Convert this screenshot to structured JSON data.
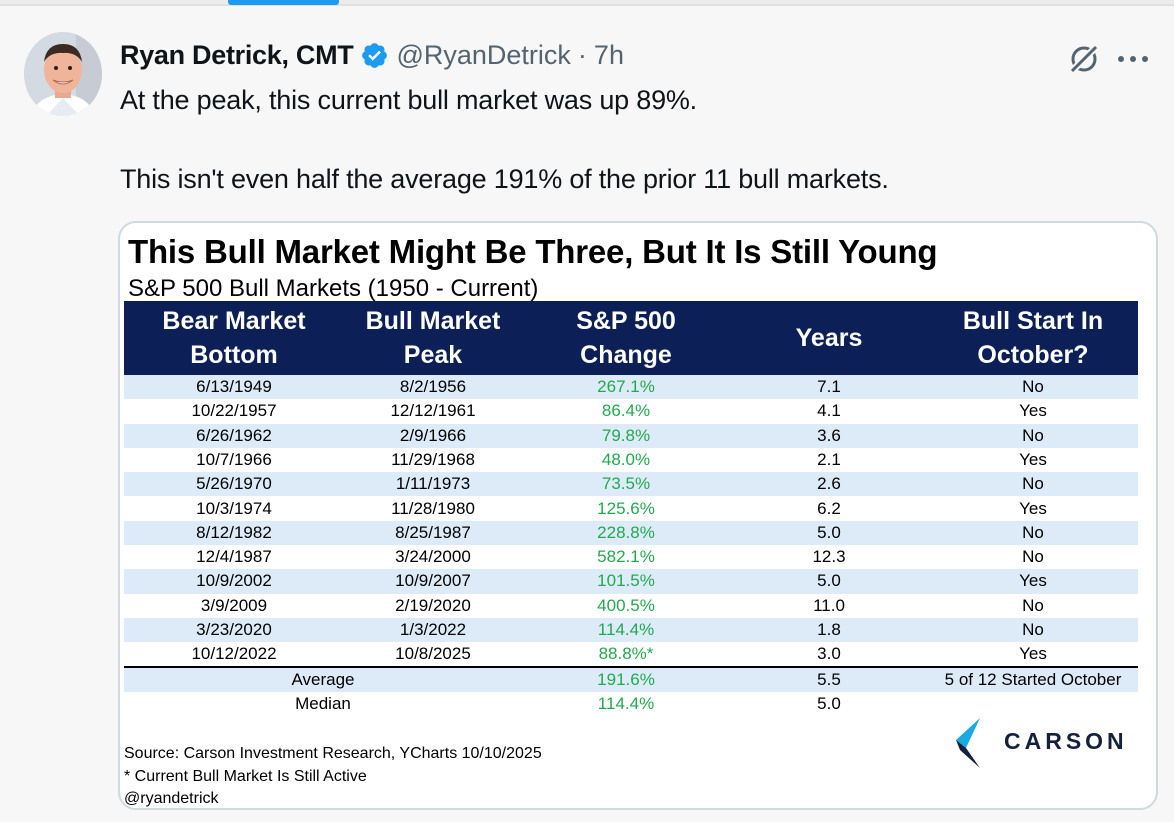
{
  "tweet": {
    "author_name": "Ryan Detrick, CMT",
    "handle": "@RyanDetrick",
    "separator": "·",
    "time": "7h",
    "text_line1": "At the peak, this current bull market was up 89%.",
    "text_line2": "This isn't even half the average 191% of the prior 11 bull markets."
  },
  "icons": {
    "verified": "verified-badge-icon",
    "grok": "grok-icon",
    "more": "more-icon"
  },
  "colors": {
    "verified_blue": "#1d9bf0",
    "header_navy": "#0c1f57",
    "stripe_blue": "#ddebf8",
    "change_green": "#21a94f"
  },
  "chart_data": {
    "type": "table",
    "title": "This Bull Market Might Be Three, But It Is Still Young",
    "subtitle": "S&P 500 Bull Markets (1950 - Current)",
    "columns": [
      {
        "line1": "Bear Market",
        "line2": "Bottom"
      },
      {
        "line1": "Bull Market",
        "line2": "Peak"
      },
      {
        "line1": "S&P 500",
        "line2": "Change"
      },
      {
        "line1": "Years",
        "line2": ""
      },
      {
        "line1": "Bull Start In",
        "line2": "October?"
      }
    ],
    "rows": [
      [
        "6/13/1949",
        "8/2/1956",
        "267.1%",
        "7.1",
        "No"
      ],
      [
        "10/22/1957",
        "12/12/1961",
        "86.4%",
        "4.1",
        "Yes"
      ],
      [
        "6/26/1962",
        "2/9/1966",
        "79.8%",
        "3.6",
        "No"
      ],
      [
        "10/7/1966",
        "11/29/1968",
        "48.0%",
        "2.1",
        "Yes"
      ],
      [
        "5/26/1970",
        "1/11/1973",
        "73.5%",
        "2.6",
        "No"
      ],
      [
        "10/3/1974",
        "11/28/1980",
        "125.6%",
        "6.2",
        "Yes"
      ],
      [
        "8/12/1982",
        "8/25/1987",
        "228.8%",
        "5.0",
        "No"
      ],
      [
        "12/4/1987",
        "3/24/2000",
        "582.1%",
        "12.3",
        "No"
      ],
      [
        "10/9/2002",
        "10/9/2007",
        "101.5%",
        "5.0",
        "Yes"
      ],
      [
        "3/9/2009",
        "2/19/2020",
        "400.5%",
        "11.0",
        "No"
      ],
      [
        "3/23/2020",
        "1/3/2022",
        "114.4%",
        "1.8",
        "No"
      ],
      [
        "10/12/2022",
        "10/8/2025",
        "88.8%*",
        "3.0",
        "Yes"
      ]
    ],
    "average": {
      "label": "Average",
      "change": "191.6%",
      "years": "5.5",
      "october": "5 of 12 Started October"
    },
    "median": {
      "label": "Median",
      "change": "114.4%",
      "years": "5.0"
    },
    "source": "Source: Carson Investment Research, YCharts 10/10/2025",
    "footnote": "* Current Bull Market Is Still Active",
    "credit": "@ryandetrick",
    "logo_text": "CARSON"
  }
}
